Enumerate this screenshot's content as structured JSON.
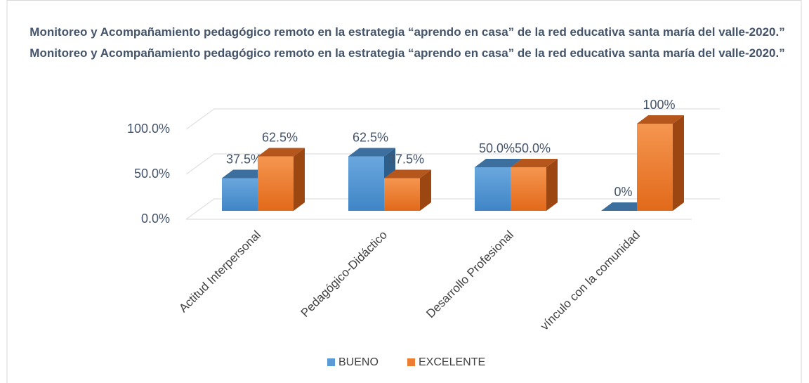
{
  "chart_data": {
    "type": "bar3d",
    "title": "Monitoreo y Acompañamiento pedagógico remoto en la estrategia “aprendo en casa” de la red educativa santa maría del valle-2020.”",
    "categories": [
      "Actitud Interpersonal",
      "Pedagógico-Didáctico",
      "Desarrollo Profesional",
      "vínculo con la comunidad"
    ],
    "series": [
      {
        "name": "BUENO",
        "color": "#5b9bd5",
        "values": [
          37.5,
          62.5,
          50,
          0
        ],
        "value_labels": [
          "37.5%",
          "62.5%",
          "50.0%",
          "0%"
        ]
      },
      {
        "name": "EXCELENTE",
        "color": "#ed7d31",
        "values": [
          62.5,
          37.5,
          50,
          100
        ],
        "value_labels": [
          "62.5%",
          "37.5%",
          "50.0%",
          "100%"
        ]
      }
    ],
    "ylim": [
      0,
      100
    ],
    "yticks": [
      {
        "value": 0,
        "label": "0.0%"
      },
      {
        "value": 50,
        "label": "50.0%"
      },
      {
        "value": 100,
        "label": "100.0%"
      }
    ],
    "grid": true,
    "legend": "bottom"
  }
}
